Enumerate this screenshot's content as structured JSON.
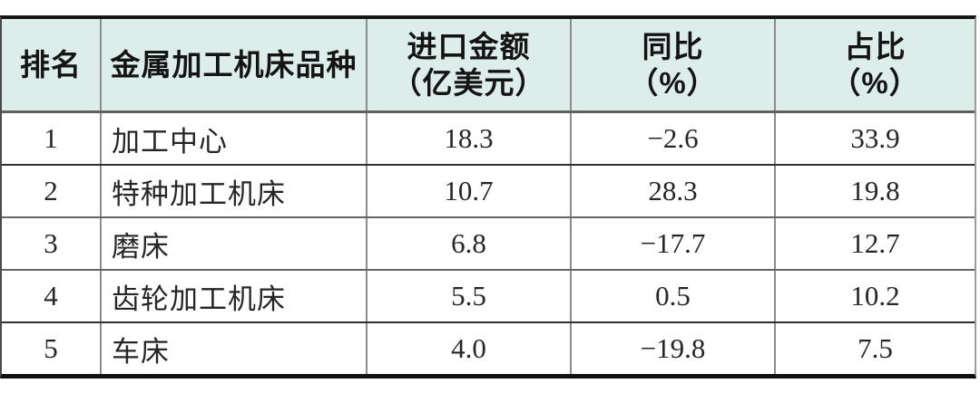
{
  "chart_data": {
    "type": "table",
    "columns": [
      "排名",
      "金属加工机床品种",
      "进口金额（亿美元）",
      "同比（%）",
      "占比（%）"
    ],
    "rows": [
      [
        "1",
        "加工中心",
        "18.3",
        "−2.6",
        "33.9"
      ],
      [
        "2",
        "特种加工机床",
        "10.7",
        "28.3",
        "19.8"
      ],
      [
        "3",
        "磨床",
        "6.8",
        "−17.7",
        "12.7"
      ],
      [
        "4",
        "齿轮加工机床",
        "5.5",
        "0.5",
        "10.2"
      ],
      [
        "5",
        "车床",
        "4.0",
        "−19.8",
        "7.5"
      ]
    ]
  },
  "header_display": {
    "rank": {
      "line1": "排名",
      "line2": ""
    },
    "category": {
      "line1": "金属加工机床品种",
      "line2": ""
    },
    "import_amount": {
      "line1": "进口金额",
      "line2": "（亿美元）"
    },
    "yoy": {
      "line1": "同比",
      "line2": "（%）"
    },
    "share": {
      "line1": "占比",
      "line2": "（%）"
    }
  },
  "colors": {
    "header_background": "#ddeeea",
    "table_text": "#262626",
    "header_text": "#141414",
    "outer_border": "#161616",
    "grid_line": "#8c8c8c",
    "page_background": "#ffffff"
  }
}
